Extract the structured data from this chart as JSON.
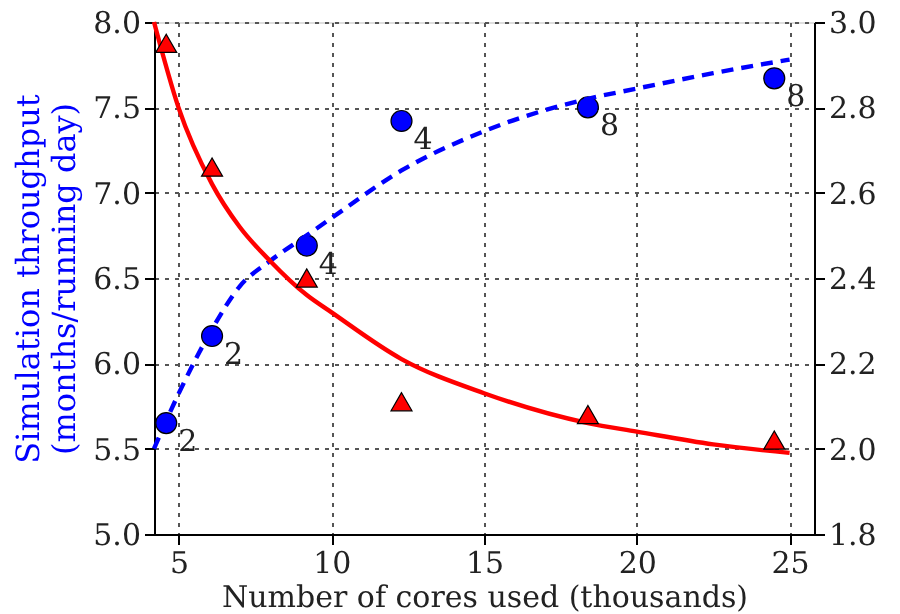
{
  "chart_data": {
    "type": "scatter",
    "xlabel": "Number of cores used (thousands)",
    "ylabel": "Simulation throughput\n(months/running day)",
    "xlim": [
      4.2,
      25.8
    ],
    "xticks": [
      5,
      10,
      15,
      20,
      25
    ],
    "ylim": [
      5.0,
      8.0
    ],
    "yticks": [
      {
        "value": 5,
        "label": "5.0"
      },
      5.5,
      {
        "value": 6,
        "label": "6.0"
      },
      6.5,
      {
        "value": 7,
        "label": "7.0"
      },
      7.5,
      {
        "value": 8,
        "label": "8.0"
      }
    ],
    "y2lim": [
      1.8,
      3.0
    ],
    "y2ticks": [
      1.8,
      {
        "value": 2,
        "label": "2.0"
      },
      2.2,
      2.4,
      2.6,
      2.8,
      {
        "value": 3,
        "label": "3.0"
      }
    ],
    "grid": true,
    "series": [
      {
        "marker": "circle",
        "color": "#0000ff",
        "x": [
          4.6,
          6.1,
          9.2,
          12.3,
          18.4,
          24.5
        ],
        "values": [
          5.65,
          6.16,
          6.69,
          7.42,
          7.5,
          7.67
        ]
      },
      {
        "type": "line",
        "line_style": "dashed",
        "color": "#0000ff",
        "x": [
          4.2,
          5,
          6.1,
          7,
          8,
          9.2,
          10,
          12.3,
          15,
          18.4,
          20,
          22.5,
          25
        ],
        "values": [
          5.5,
          5.82,
          6.2,
          6.45,
          6.6,
          6.75,
          6.85,
          7.13,
          7.36,
          7.55,
          7.61,
          7.7,
          7.78
        ]
      },
      {
        "type": "line",
        "axis": "y2",
        "line_style": "solid",
        "color": "#ff0000",
        "x": [
          4.2,
          5,
          6.1,
          7,
          8,
          9.2,
          10,
          12.3,
          15,
          18.4,
          20,
          22.5,
          25
        ],
        "values": [
          3.0,
          2.8,
          2.62,
          2.52,
          2.44,
          2.36,
          2.32,
          2.21,
          2.13,
          2.06,
          2.04,
          2.01,
          1.99
        ]
      },
      {
        "axis": "y2",
        "marker": "triangle",
        "color": "#ff0000",
        "x": [
          4.6,
          6.1,
          9.2,
          12.3,
          18.4,
          24.5
        ],
        "values": [
          2.95,
          2.66,
          2.4,
          2.11,
          2.08,
          2.02
        ]
      }
    ],
    "annotations": [
      {
        "text": "2",
        "x": 4.6,
        "y": 5.65
      },
      {
        "text": "2",
        "x": 6.1,
        "y": 6.16
      },
      {
        "text": "4",
        "x": 9.2,
        "y": 6.69
      },
      {
        "text": "4",
        "x": 12.3,
        "y": 7.42
      },
      {
        "text": "8",
        "x": 18.4,
        "y": 7.5
      },
      {
        "text": "8",
        "x": 24.5,
        "y": 7.67
      }
    ]
  }
}
